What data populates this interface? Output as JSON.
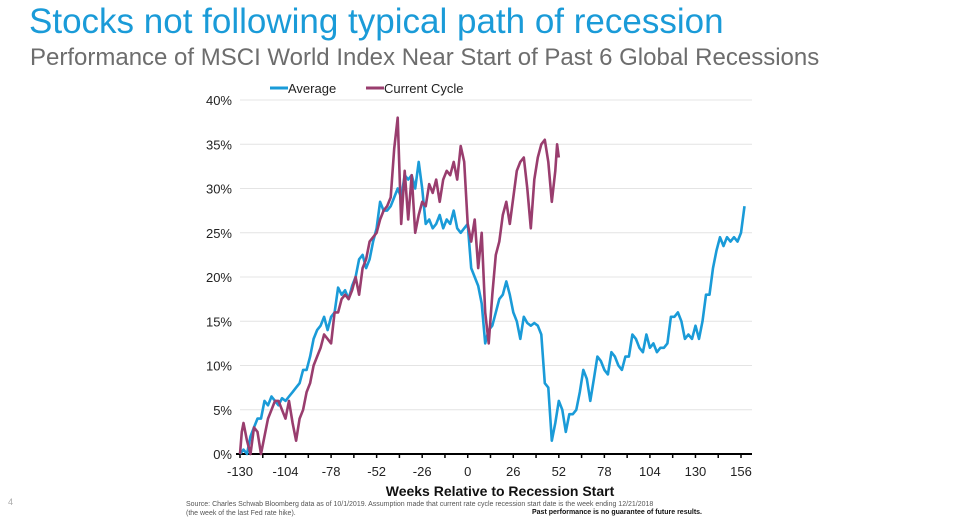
{
  "page_number": "4",
  "source_note": "Source: Charles Schwab Bloomberg data as of 10/1/2019. Assumption made that current rate cycle recession start date is the week ending 12/21/2018\n(the week of the last Fed rate hike).",
  "disclaimer": "Past performance is no guarantee of future results.",
  "chart_data": {
    "type": "line",
    "title": "Stocks not following typical path of recession",
    "subtitle": "Performance of MSCI World Index Near Start of Past 6 Global Recessions",
    "xlabel": "Weeks Relative to Recession Start",
    "ylabel": "",
    "xlim": [
      -130,
      158
    ],
    "ylim": [
      0,
      40
    ],
    "x_ticks": [
      -130,
      -104,
      -78,
      -52,
      -26,
      0,
      26,
      52,
      78,
      104,
      130,
      156
    ],
    "y_ticks": [
      "0%",
      "5%",
      "10%",
      "15%",
      "20%",
      "25%",
      "30%",
      "35%",
      "40%"
    ],
    "grid": "horizontal",
    "legend_position": "top",
    "series": [
      {
        "name": "Average",
        "color": "#1a9bd8",
        "x": [
          -130,
          -128,
          -126,
          -124,
          -122,
          -120,
          -118,
          -116,
          -114,
          -112,
          -110,
          -108,
          -106,
          -104,
          -102,
          -100,
          -98,
          -96,
          -94,
          -92,
          -90,
          -88,
          -86,
          -84,
          -82,
          -80,
          -78,
          -76,
          -74,
          -72,
          -70,
          -68,
          -66,
          -64,
          -62,
          -60,
          -58,
          -56,
          -54,
          -52,
          -50,
          -48,
          -46,
          -44,
          -42,
          -40,
          -38,
          -36,
          -34,
          -32,
          -30,
          -28,
          -26,
          -24,
          -22,
          -20,
          -18,
          -16,
          -14,
          -12,
          -10,
          -8,
          -6,
          -4,
          -2,
          0,
          2,
          4,
          6,
          8,
          10,
          12,
          14,
          16,
          18,
          20,
          22,
          24,
          26,
          28,
          30,
          32,
          34,
          36,
          38,
          40,
          42,
          44,
          46,
          48,
          50,
          52,
          54,
          56,
          58,
          60,
          62,
          64,
          66,
          68,
          70,
          72,
          74,
          76,
          78,
          80,
          82,
          84,
          86,
          88,
          90,
          92,
          94,
          96,
          98,
          100,
          102,
          104,
          106,
          108,
          110,
          112,
          114,
          116,
          118,
          120,
          122,
          124,
          126,
          128,
          130,
          132,
          134,
          136,
          138,
          140,
          142,
          144,
          146,
          148,
          150,
          152,
          154,
          156,
          158
        ],
        "values": [
          0,
          0.5,
          0,
          2,
          3,
          4,
          4,
          6,
          5.5,
          6.5,
          6,
          5.5,
          6.3,
          6,
          6.5,
          7,
          7.5,
          8,
          9.5,
          9.5,
          11,
          13,
          14,
          14.5,
          15.5,
          14,
          15.5,
          16,
          18.8,
          18,
          18.5,
          17.5,
          19,
          20,
          22,
          22.5,
          21,
          22,
          24,
          25.5,
          28.5,
          27.5,
          27.5,
          28,
          29,
          30,
          29,
          31.5,
          31,
          31.5,
          30,
          33,
          30,
          26,
          26.5,
          25.5,
          26,
          27,
          25.5,
          26.5,
          26,
          27.5,
          25.5,
          25,
          25.5,
          26,
          21,
          20,
          19,
          17,
          12.5,
          14,
          14.5,
          16,
          17.5,
          18,
          19.5,
          18,
          16,
          15,
          13,
          15.5,
          14.8,
          14.5,
          14.8,
          14.5,
          13.5,
          8,
          7.5,
          1.5,
          3.5,
          6,
          5,
          2.5,
          4.5,
          4.5,
          5,
          7,
          9.5,
          8.5,
          6,
          8.5,
          11,
          10.5,
          9.5,
          9,
          11.5,
          11,
          10,
          9.5,
          11,
          11,
          13.5,
          13,
          12,
          11.5,
          13.5,
          12,
          12.5,
          11.5,
          12,
          12,
          12.5,
          15.5,
          15.5,
          16,
          15,
          13,
          13.5,
          13,
          14.5,
          13,
          15,
          18,
          18,
          21,
          23,
          24.5,
          23.5,
          24.5,
          24,
          24.5,
          24,
          25,
          28
        ]
      },
      {
        "name": "Current Cycle",
        "color": "#993d6e",
        "x": [
          -130,
          -129,
          -128,
          -126,
          -124,
          -122,
          -120,
          -118,
          -116,
          -114,
          -112,
          -110,
          -108,
          -106,
          -104,
          -102,
          -100,
          -98,
          -96,
          -94,
          -92,
          -90,
          -88,
          -86,
          -84,
          -82,
          -80,
          -78,
          -76,
          -74,
          -72,
          -70,
          -68,
          -66,
          -64,
          -62,
          -60,
          -58,
          -56,
          -54,
          -52,
          -50,
          -48,
          -46,
          -44,
          -42,
          -40,
          -38,
          -36,
          -34,
          -32,
          -30,
          -28,
          -26,
          -24,
          -22,
          -20,
          -18,
          -16,
          -14,
          -12,
          -10,
          -8,
          -6,
          -4,
          -2,
          0,
          2,
          4,
          6,
          8,
          10,
          12,
          14,
          16,
          18,
          20,
          22,
          24,
          26,
          28,
          30,
          32,
          34,
          36,
          38,
          40,
          42,
          44,
          46,
          48,
          50,
          51,
          52
        ],
        "values": [
          0,
          2.5,
          3.5,
          1.5,
          0,
          3,
          2.5,
          0,
          2,
          4,
          5,
          6,
          6,
          5,
          4,
          6,
          3.5,
          1.5,
          4,
          5,
          7,
          8,
          10,
          11,
          12,
          13.5,
          13,
          12.5,
          16,
          16,
          17.5,
          18,
          17.5,
          18.5,
          20,
          18,
          21,
          22,
          24,
          24.5,
          25,
          26.5,
          27.5,
          28,
          29,
          34.5,
          38,
          26,
          32,
          26.5,
          31.5,
          25,
          27,
          28.5,
          28,
          30.5,
          29.5,
          31,
          28.5,
          31,
          32,
          31.5,
          33,
          31,
          34.8,
          33,
          26,
          24,
          26.5,
          21,
          25,
          16,
          12.5,
          18,
          22.5,
          24,
          27,
          28.5,
          26,
          29,
          32,
          33,
          33.5,
          30,
          25.5,
          31,
          33.5,
          35,
          35.5,
          33,
          28.5,
          32,
          35,
          33.5
        ]
      }
    ]
  }
}
